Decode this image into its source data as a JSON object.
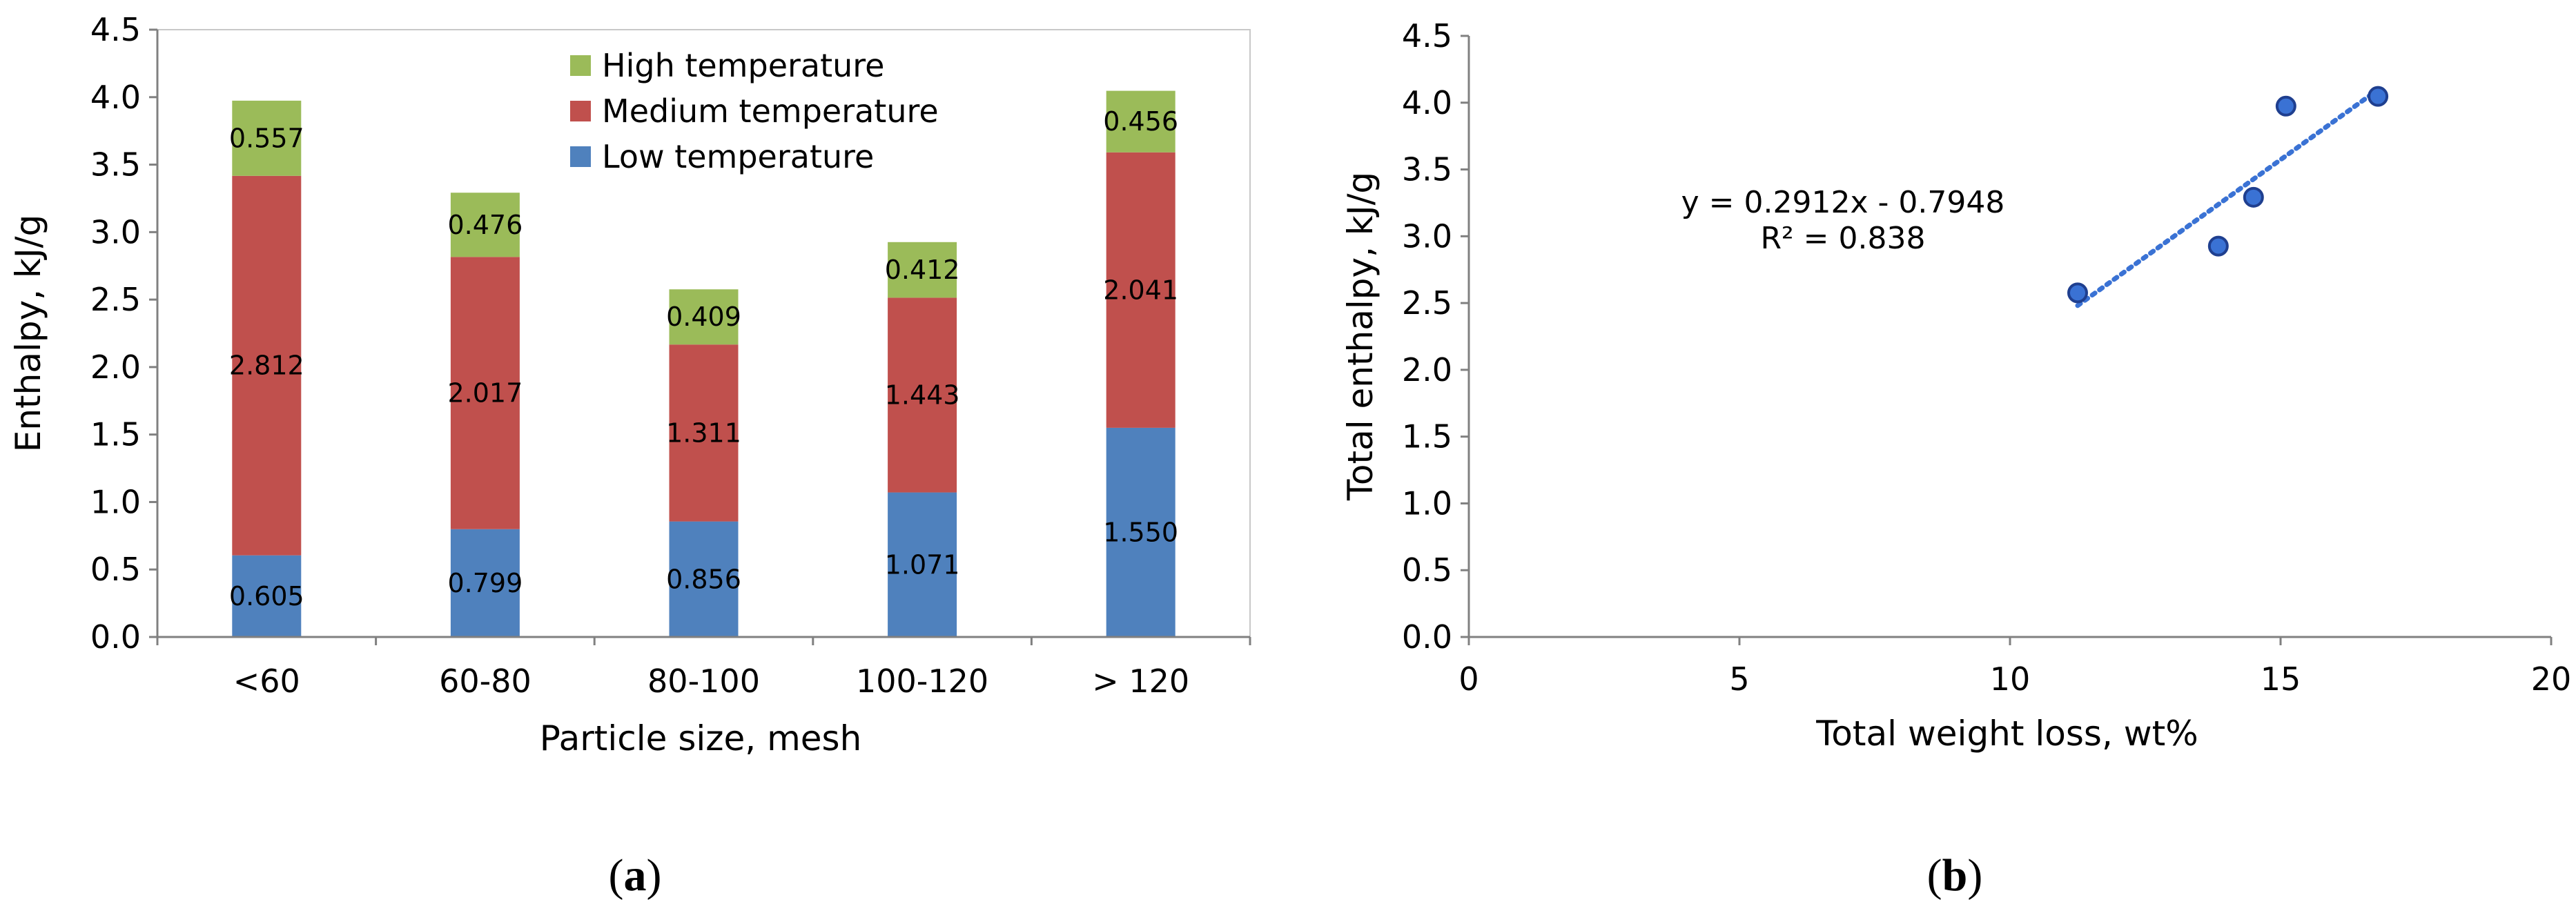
{
  "colors": {
    "low": "#4f81bd",
    "medium": "#c0504d",
    "high": "#9bbb59",
    "scatter_point": "#3a72d4",
    "trendline": "#3a72d4",
    "axis": "#808080"
  },
  "chart_data": [
    {
      "type": "bar",
      "stacked": true,
      "panel_label": "a",
      "xlabel": "Particle size, mesh",
      "ylabel": "Enthalpy, kJ/g",
      "categories": [
        "<60",
        "60-80",
        "80-100",
        "100-120",
        "> 120"
      ],
      "ylim": [
        0,
        4.5
      ],
      "yticks": [
        "0.0",
        "0.5",
        "1.0",
        "1.5",
        "2.0",
        "2.5",
        "3.0",
        "3.5",
        "4.0",
        "4.5"
      ],
      "legend_position": "top-right",
      "grid": false,
      "series": [
        {
          "name": "Low temperature",
          "color_key": "low",
          "values": [
            0.605,
            0.799,
            0.856,
            1.071,
            1.55
          ],
          "labels": [
            "0.605",
            "0.799",
            "0.856",
            "1.071",
            "1.550"
          ]
        },
        {
          "name": "Medium temperature",
          "color_key": "medium",
          "values": [
            2.812,
            2.017,
            1.311,
            1.443,
            2.041
          ],
          "labels": [
            "2.812",
            "2.017",
            "1.311",
            "1.443",
            "2.041"
          ]
        },
        {
          "name": "High temperature",
          "color_key": "high",
          "values": [
            0.557,
            0.476,
            0.409,
            0.412,
            0.456
          ],
          "labels": [
            "0.557",
            "0.476",
            "0.409",
            "0.412",
            "0.456"
          ]
        }
      ],
      "legend_order": [
        "High temperature",
        "Medium temperature",
        "Low temperature"
      ]
    },
    {
      "type": "scatter",
      "panel_label": "b",
      "xlabel": "Total weight loss, wt%",
      "ylabel": "Total enthalpy, kJ/g",
      "xlim": [
        0,
        20
      ],
      "ylim": [
        0,
        4.5
      ],
      "xticks": [
        "0",
        "5",
        "10",
        "15",
        "20"
      ],
      "yticks": [
        "0.0",
        "0.5",
        "1.0",
        "1.5",
        "2.0",
        "2.5",
        "3.0",
        "3.5",
        "4.0",
        "4.5"
      ],
      "grid": false,
      "points": [
        {
          "x": 11.25,
          "y": 2.576
        },
        {
          "x": 13.85,
          "y": 2.926
        },
        {
          "x": 14.5,
          "y": 3.292
        },
        {
          "x": 15.1,
          "y": 3.974
        },
        {
          "x": 16.8,
          "y": 4.047
        }
      ],
      "trendline": {
        "type": "linear",
        "slope": 0.2912,
        "intercept": -0.7948,
        "x_range": [
          11.25,
          16.8
        ]
      },
      "equation": "y = 0.2912x - 0.7948",
      "r_squared": "R² = 0.838"
    }
  ]
}
